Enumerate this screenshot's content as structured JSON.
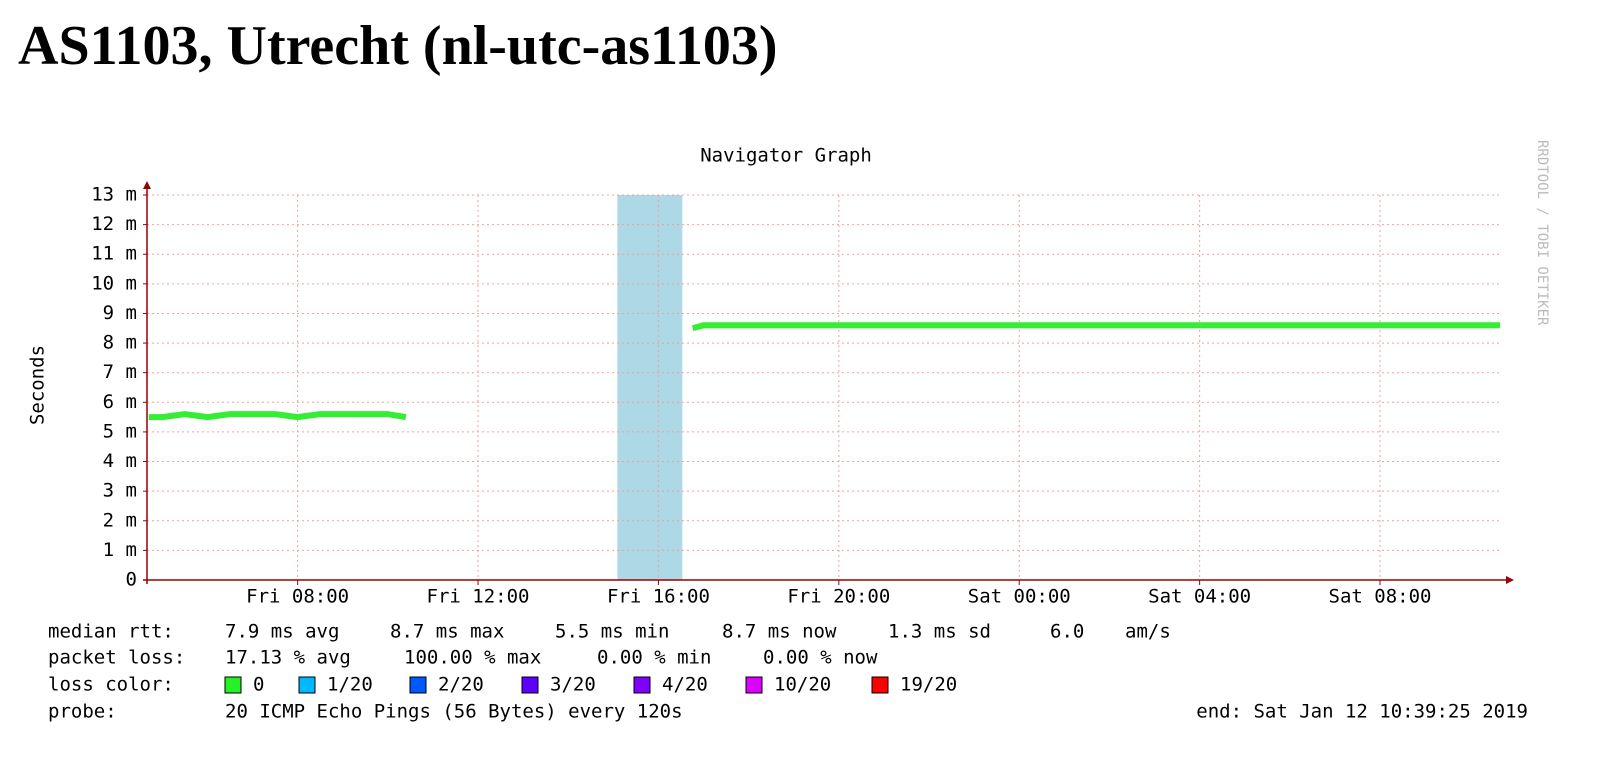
{
  "header": {
    "title": "AS1103, Utrecht (nl-utc-as1103)"
  },
  "chart_data": {
    "type": "line",
    "title": "Navigator Graph",
    "y_label": "Seconds",
    "watermark": "RRDTOOL / TOBI OETIKER",
    "xlim": [
      4.66,
      34.66
    ],
    "xticks": [
      {
        "value": 8,
        "label": "Fri 08:00"
      },
      {
        "value": 12,
        "label": "Fri 12:00"
      },
      {
        "value": 16,
        "label": "Fri 16:00"
      },
      {
        "value": 20,
        "label": "Fri 20:00"
      },
      {
        "value": 24,
        "label": "Sat 00:00"
      },
      {
        "value": 28,
        "label": "Sat 04:00"
      },
      {
        "value": 32,
        "label": "Sat 08:00"
      }
    ],
    "ylim": [
      0,
      13
    ],
    "yticks": [
      0,
      {
        "value": 1,
        "label": "1 m"
      },
      {
        "value": 2,
        "label": "2 m"
      },
      {
        "value": 3,
        "label": "3 m"
      },
      {
        "value": 4,
        "label": "4 m"
      },
      {
        "value": 5,
        "label": "5 m"
      },
      {
        "value": 6,
        "label": "6 m"
      },
      {
        "value": 7,
        "label": "7 m"
      },
      {
        "value": 8,
        "label": "8 m"
      },
      {
        "value": 9,
        "label": "9 m"
      },
      {
        "value": 10,
        "label": "10 m"
      },
      {
        "value": 11,
        "label": "11 m"
      },
      {
        "value": 12,
        "label": "12 m"
      },
      {
        "value": 13,
        "label": "13 m"
      }
    ],
    "grid": true,
    "x": [
      4.7,
      5,
      5.5,
      6,
      6.5,
      7,
      7.5,
      8,
      8.5,
      9,
      9.5,
      10,
      10.4,
      13,
      16.76,
      17,
      18,
      19,
      20,
      21,
      22,
      23,
      24,
      25,
      26,
      27,
      28,
      29,
      30,
      31,
      32,
      33,
      34,
      34.66
    ],
    "series": [
      {
        "color": "#33ee33",
        "values": [
          5.5,
          5.5,
          5.6,
          5.5,
          5.6,
          5.6,
          5.6,
          5.5,
          5.6,
          5.6,
          5.6,
          5.6,
          5.5,
          null,
          8.5,
          8.6,
          8.6,
          8.6,
          8.6,
          8.6,
          8.6,
          8.6,
          8.6,
          8.6,
          8.6,
          8.6,
          8.6,
          8.6,
          8.6,
          8.6,
          8.6,
          8.6,
          8.6,
          8.6
        ]
      }
    ],
    "loss_bands": [
      {
        "start": 15.09,
        "end": 16.53,
        "color": "#add8e6"
      }
    ],
    "stats": {
      "rtt": {
        "label": "median rtt:",
        "items": [
          "7.9 ms avg",
          "8.7 ms max",
          "5.5 ms min",
          "8.7 ms now",
          "1.3 ms sd",
          "6.0",
          "am/s"
        ]
      },
      "loss": {
        "label": "packet loss:",
        "items": [
          "17.13 % avg",
          "100.00 % max",
          "0.00 % min",
          "0.00 % now"
        ]
      },
      "loss_color": {
        "label": "loss color:",
        "items": [
          {
            "label": "0",
            "color": "#26f026"
          },
          {
            "label": "1/20",
            "color": "#00b8ff"
          },
          {
            "label": "2/20",
            "color": "#0059ff"
          },
          {
            "label": "3/20",
            "color": "#5e00ff"
          },
          {
            "label": "4/20",
            "color": "#7e00ff"
          },
          {
            "label": "10/20",
            "color": "#dd00ff"
          },
          {
            "label": "19/20",
            "color": "#ff0000"
          }
        ]
      },
      "probe": {
        "label": "probe:",
        "text": "20 ICMP Echo Pings (56 Bytes) every 120s"
      },
      "end": "end: Sat Jan 12 10:39:25 2019"
    }
  }
}
